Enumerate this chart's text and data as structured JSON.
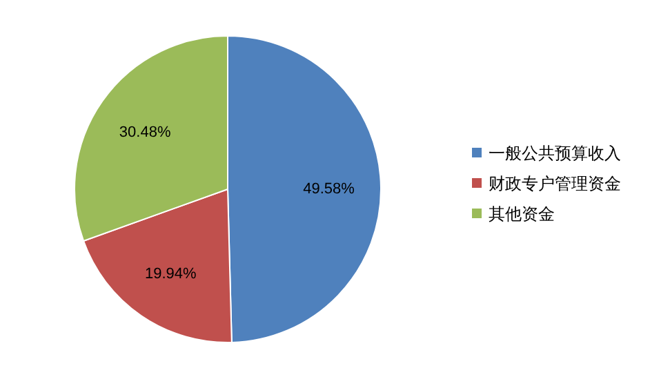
{
  "chart_data": {
    "type": "pie",
    "categories": [
      "一般公共预算收入",
      "财政专户管理资金",
      "其他资金"
    ],
    "values": [
      49.58,
      19.94,
      30.48
    ],
    "colors": [
      "#4f81bd",
      "#c0504d",
      "#9bbb59"
    ],
    "value_labels": [
      "49.58%",
      "19.94%",
      "30.48%"
    ],
    "legend": "right"
  }
}
